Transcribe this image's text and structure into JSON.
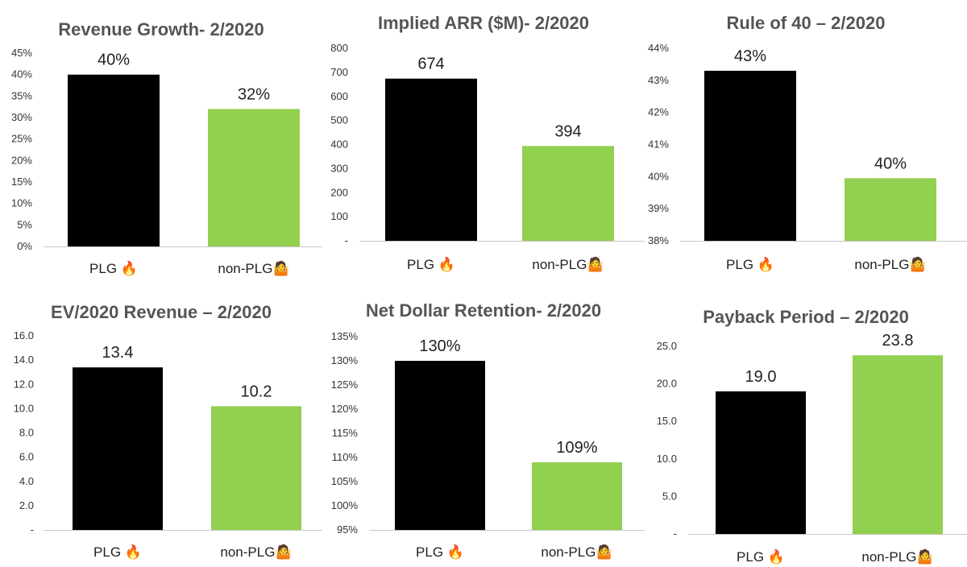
{
  "colors": {
    "plg": "#000000",
    "non_plg": "#92d050",
    "axis": "#c8c8c8"
  },
  "chart_data": [
    {
      "type": "bar",
      "title": "Revenue Growth-  2/2020",
      "categories": [
        "PLG 🔥",
        "non-PLG🤷"
      ],
      "values": [
        40,
        32
      ],
      "value_labels": [
        "40%",
        "32%"
      ],
      "ylim": [
        0,
        45
      ],
      "yticks": [
        0,
        5,
        10,
        15,
        20,
        25,
        30,
        35,
        40,
        45
      ],
      "ytick_labels": [
        "0%",
        "5%",
        "10%",
        "15%",
        "20%",
        "25%",
        "30%",
        "35%",
        "40%",
        "45%"
      ],
      "xlabel": "",
      "ylabel": "",
      "grid": false,
      "legend": "none"
    },
    {
      "type": "bar",
      "title": "Implied ARR ($M)- 2/2020",
      "categories": [
        "PLG 🔥",
        "non-PLG🤷"
      ],
      "values": [
        674,
        394
      ],
      "value_labels": [
        "674",
        "394"
      ],
      "ylim": [
        0,
        800
      ],
      "yticks": [
        0,
        100,
        200,
        300,
        400,
        500,
        600,
        700,
        800
      ],
      "ytick_labels": [
        "-",
        "100",
        "200",
        "300",
        "400",
        "500",
        "600",
        "700",
        "800"
      ],
      "xlabel": "",
      "ylabel": "",
      "grid": false,
      "legend": "none"
    },
    {
      "type": "bar",
      "title": "Rule of 40 – 2/2020",
      "categories": [
        "PLG 🔥",
        "non-PLG🤷"
      ],
      "values": [
        43.3,
        39.95
      ],
      "value_labels": [
        "43%",
        "40%"
      ],
      "ylim": [
        38,
        44
      ],
      "yticks": [
        38,
        39,
        40,
        41,
        42,
        43,
        44
      ],
      "ytick_labels": [
        "38%",
        "39%",
        "40%",
        "41%",
        "42%",
        "43%",
        "44%"
      ],
      "xlabel": "",
      "ylabel": "",
      "grid": false,
      "legend": "none"
    },
    {
      "type": "bar",
      "title": "EV/2020 Revenue – 2/2020",
      "categories": [
        "PLG 🔥",
        "non-PLG🤷"
      ],
      "values": [
        13.4,
        10.2
      ],
      "value_labels": [
        "13.4",
        "10.2"
      ],
      "ylim": [
        0,
        16
      ],
      "yticks": [
        0,
        2,
        4,
        6,
        8,
        10,
        12,
        14,
        16
      ],
      "ytick_labels": [
        "-",
        "2.0",
        "4.0",
        "6.0",
        "8.0",
        "10.0",
        "12.0",
        "14.0",
        "16.0"
      ],
      "xlabel": "",
      "ylabel": "",
      "grid": false,
      "legend": "none"
    },
    {
      "type": "bar",
      "title": "Net Dollar Retention- 2/2020",
      "categories": [
        "PLG 🔥",
        "non-PLG🤷"
      ],
      "values": [
        130,
        109
      ],
      "value_labels": [
        "130%",
        "109%"
      ],
      "ylim": [
        95,
        135
      ],
      "yticks": [
        95,
        100,
        105,
        110,
        115,
        120,
        125,
        130,
        135
      ],
      "ytick_labels": [
        "95%",
        "100%",
        "105%",
        "110%",
        "115%",
        "120%",
        "125%",
        "130%",
        "135%"
      ],
      "xlabel": "",
      "ylabel": "",
      "grid": false,
      "legend": "none"
    },
    {
      "type": "bar",
      "title": "Payback Period – 2/2020",
      "categories": [
        "PLG 🔥",
        "non-PLG🤷"
      ],
      "values": [
        19.0,
        23.8
      ],
      "value_labels": [
        "19.0",
        "23.8"
      ],
      "ylim": [
        0,
        25
      ],
      "yticks": [
        0,
        5,
        10,
        15,
        20,
        25
      ],
      "ytick_labels": [
        "-",
        "5.0",
        "10.0",
        "15.0",
        "20.0",
        "25.0"
      ],
      "xlabel": "",
      "ylabel": "",
      "grid": false,
      "legend": "none"
    }
  ]
}
